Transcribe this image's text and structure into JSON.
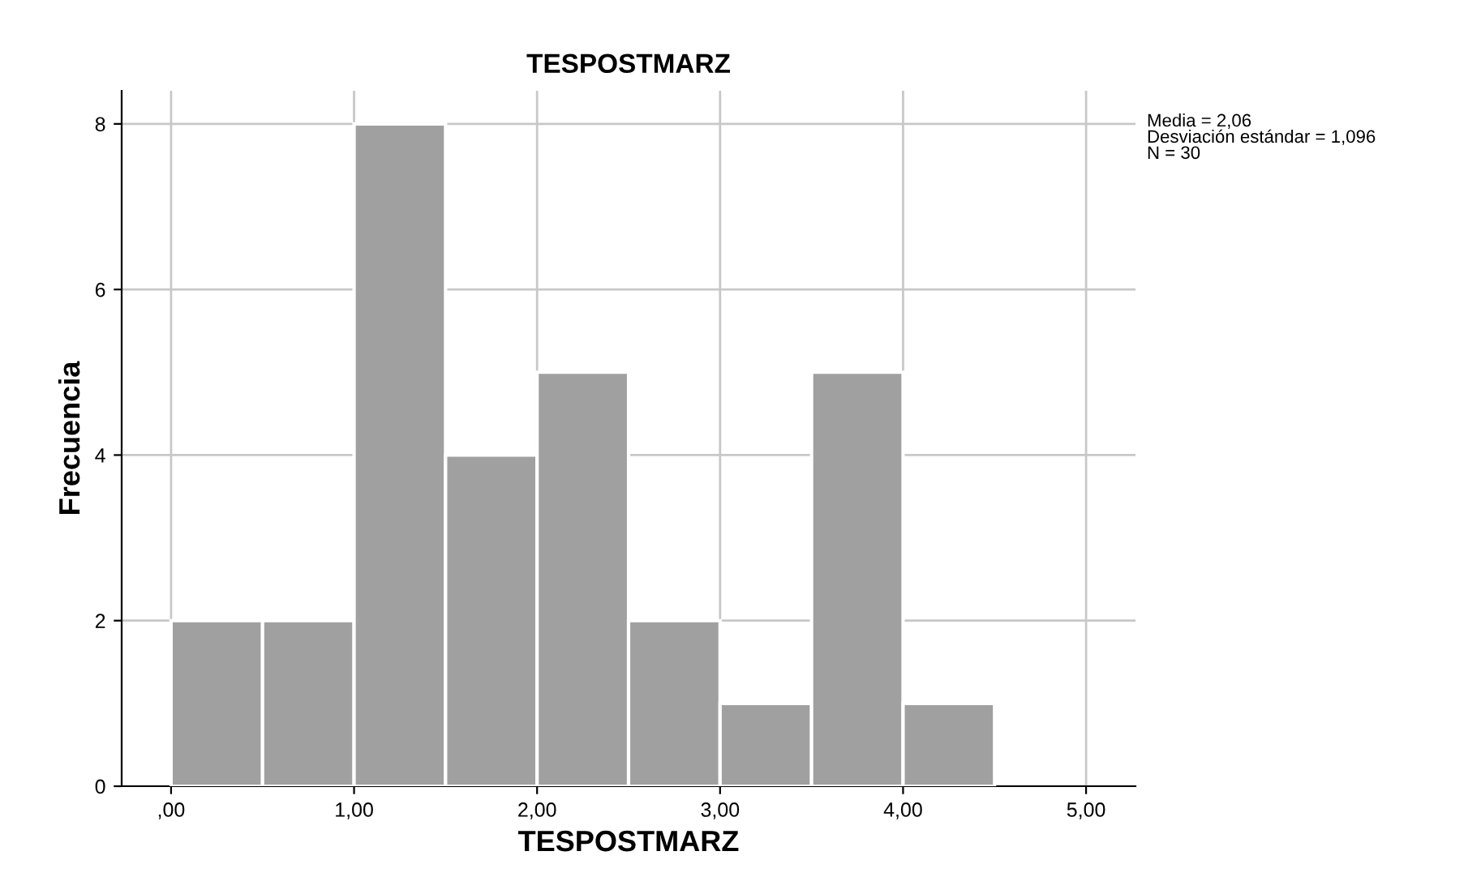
{
  "chart_data": {
    "type": "histogram",
    "title": "TESPOSTMARZ",
    "xlabel": "TESPOSTMARZ",
    "ylabel": "Frecuencia",
    "bins": [
      0,
      0.5,
      1,
      1.5,
      2,
      2.5,
      3,
      3.5,
      4,
      4.5
    ],
    "values": [
      2,
      2,
      8,
      4,
      5,
      2,
      1,
      5,
      1
    ],
    "color": "#a0a0a0",
    "xlim": [
      -0.27,
      5.27
    ],
    "ylim": [
      0,
      8.4
    ],
    "xticks": [
      {
        "value": 0,
        "label": ",00"
      },
      {
        "value": 1,
        "label": "1,00"
      },
      {
        "value": 2,
        "label": "2,00"
      },
      {
        "value": 3,
        "label": "3,00"
      },
      {
        "value": 4,
        "label": "4,00"
      },
      {
        "value": 5,
        "label": "5,00"
      }
    ],
    "yticks": [
      0,
      2,
      4,
      6,
      8
    ],
    "grid": true,
    "annotations": [
      "Media = 2,06\nDesviación estándar = 1,096\nN = 30"
    ]
  }
}
